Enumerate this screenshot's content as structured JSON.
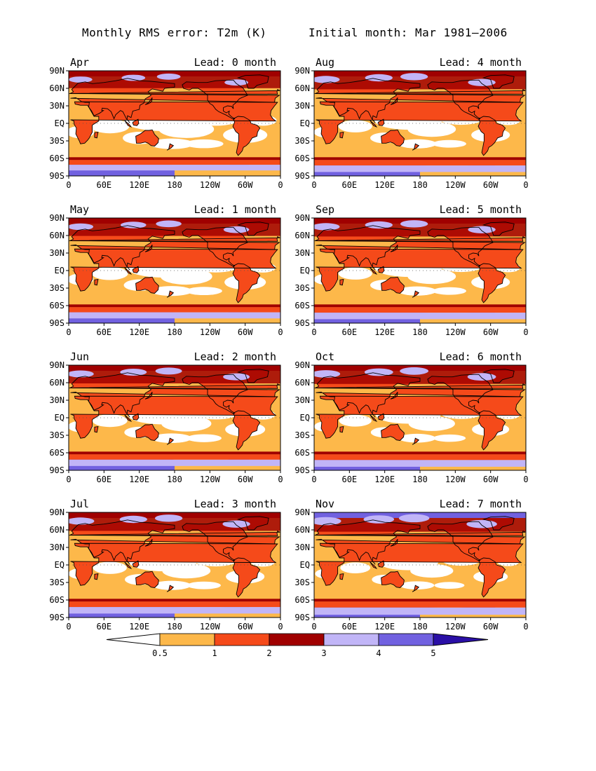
{
  "title_left": "Monthly RMS error: T2m (K)",
  "title_right": "Initial month: Mar 1981–2006",
  "x_ticks": [
    "0",
    "60E",
    "120E",
    "180",
    "120W",
    "60W",
    "0"
  ],
  "y_ticks": [
    "90N",
    "60N",
    "30N",
    "EQ",
    "30S",
    "60S",
    "90S"
  ],
  "panels": [
    {
      "month": "Apr",
      "lead": "Lead: 0 month",
      "level": 0.35
    },
    {
      "month": "Aug",
      "lead": "Lead: 4 month",
      "level": 0.55
    },
    {
      "month": "May",
      "lead": "Lead: 1 month",
      "level": 0.45
    },
    {
      "month": "Sep",
      "lead": "Lead: 5 month",
      "level": 0.55
    },
    {
      "month": "Jun",
      "lead": "Lead: 2 month",
      "level": 0.5
    },
    {
      "month": "Oct",
      "lead": "Lead: 6 month",
      "level": 0.6
    },
    {
      "month": "Jul",
      "lead": "Lead: 3 month",
      "level": 0.55
    },
    {
      "month": "Nov",
      "lead": "Lead: 7 month",
      "level": 0.7
    }
  ],
  "colorbar": {
    "labels": [
      "0.5",
      "1",
      "2",
      "3",
      "4",
      "5"
    ],
    "colors": [
      "#ffffff",
      "#fdb84a",
      "#f54a1a",
      "#a00000",
      "#c1b5f7",
      "#7161e0",
      "#2a0fa6"
    ]
  }
}
